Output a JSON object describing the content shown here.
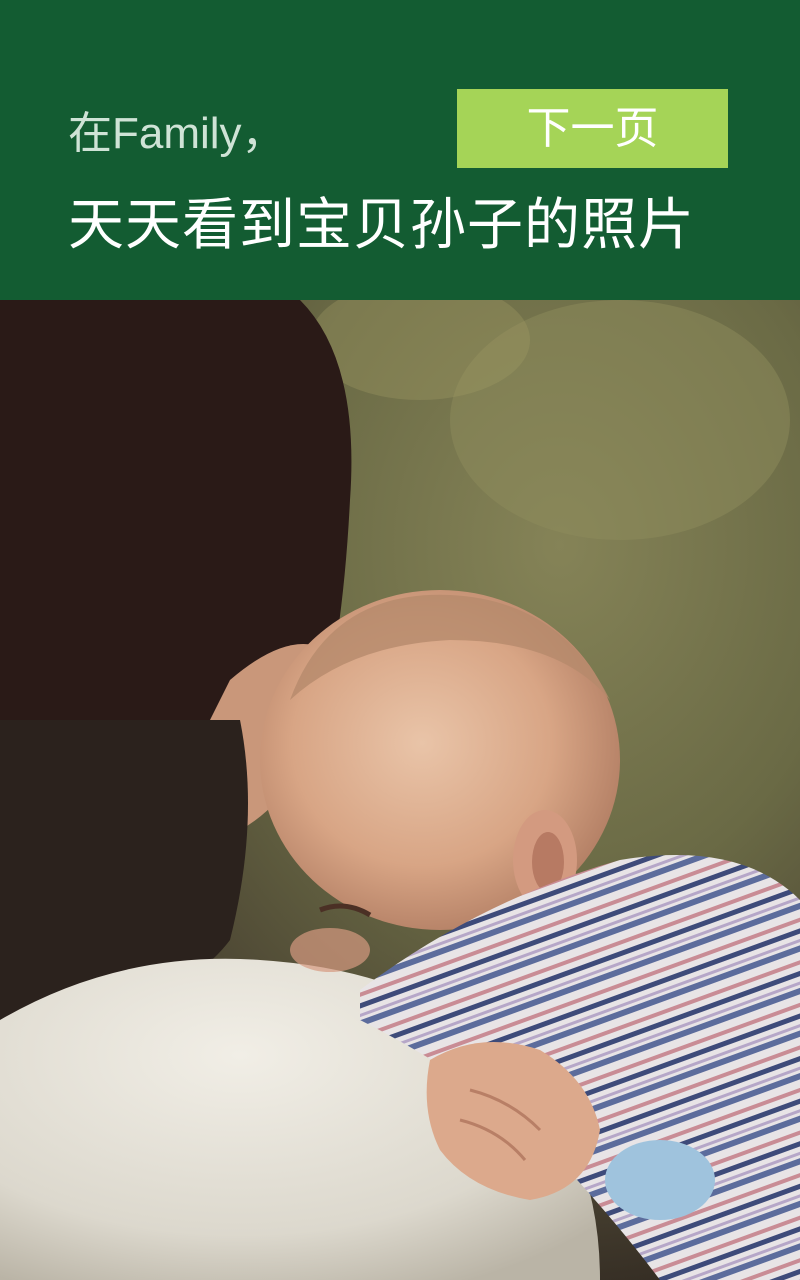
{
  "header": {
    "subtitle": "在Family，",
    "title": "天天看到宝贝孙子的照片",
    "next_button_label": "下一页"
  },
  "photo": {
    "subject": "grandparent-holding-baby-photo"
  },
  "colors": {
    "header_bg": "#135c32",
    "button_bg": "#a5d457",
    "title_text": "#ffffff",
    "subtitle_text": "#cfe3d6"
  }
}
